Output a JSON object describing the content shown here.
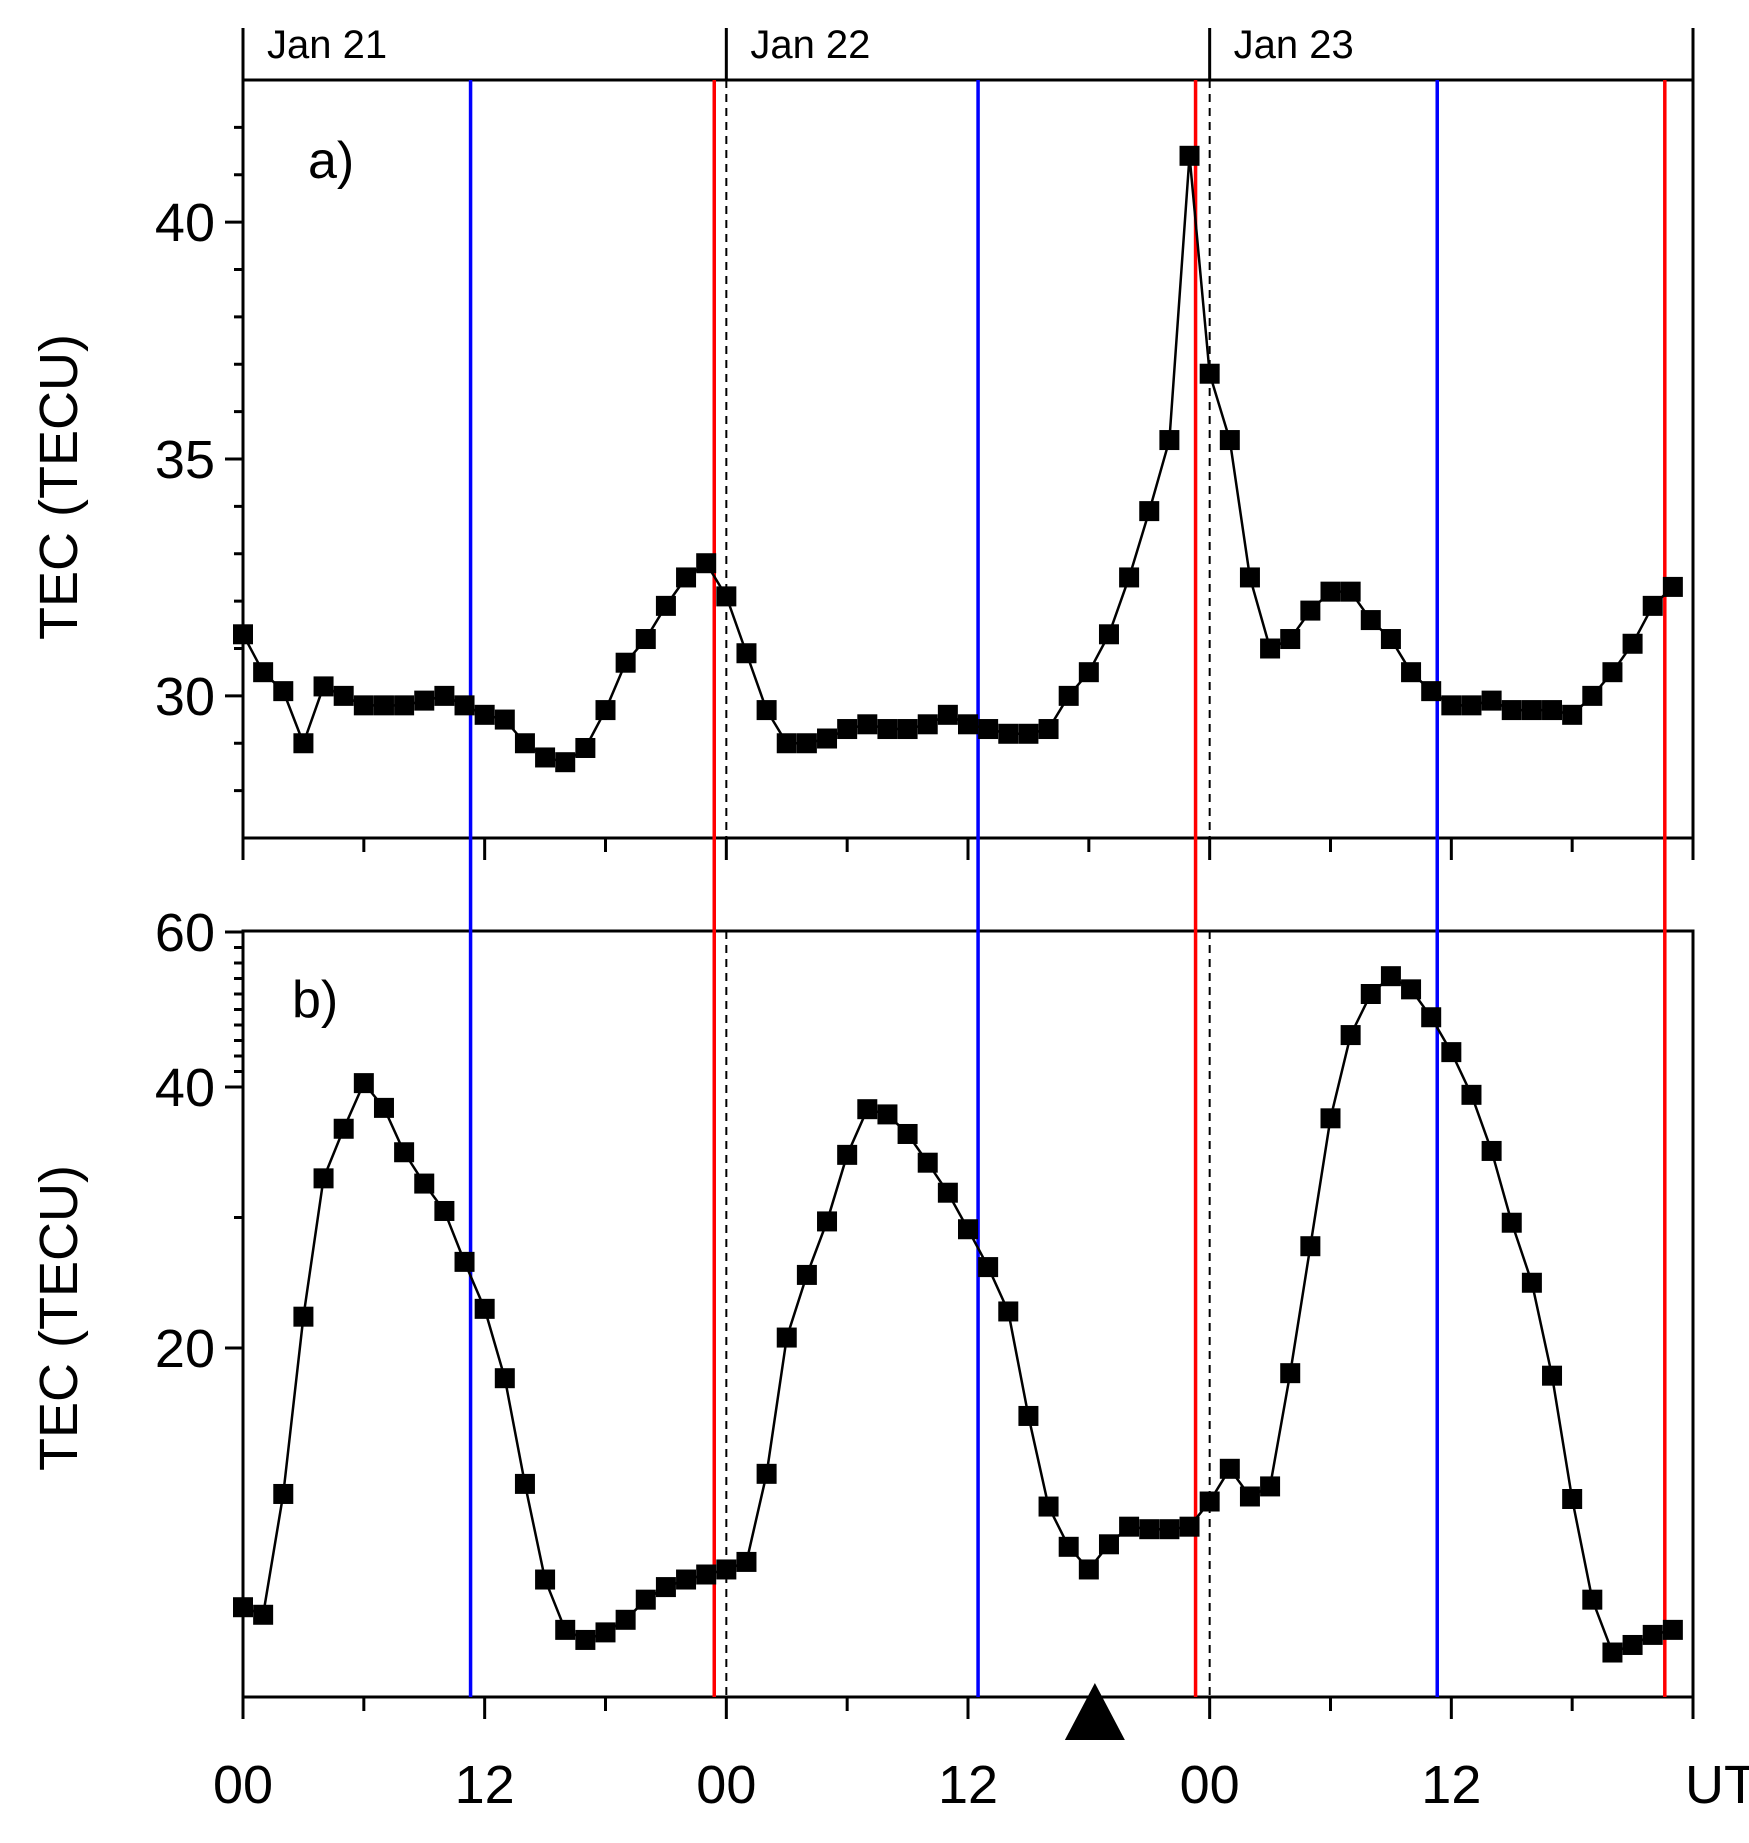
{
  "chart_data": [
    {
      "panel": "a",
      "type": "line",
      "panel_label": "a)",
      "ylabel": "TEC (TECU)",
      "xlim": [
        0,
        72
      ],
      "ylim": [
        27,
        43
      ],
      "y_ticks": [
        30,
        35,
        40
      ],
      "y_tick_labels": [
        "30",
        "35",
        "40"
      ],
      "x": [
        0,
        1,
        2,
        3,
        4,
        5,
        6,
        7,
        8,
        9,
        10,
        11,
        12,
        13,
        14,
        15,
        16,
        17,
        18,
        19,
        20,
        21,
        22,
        23,
        24,
        25,
        26,
        27,
        28,
        29,
        30,
        31,
        32,
        33,
        34,
        35,
        36,
        37,
        38,
        39,
        40,
        41,
        42,
        43,
        44,
        45,
        46,
        47,
        48,
        49,
        50,
        51,
        52,
        53,
        54,
        55,
        56,
        57,
        58,
        59,
        60,
        61,
        62,
        63,
        64,
        65,
        66,
        67,
        68,
        69,
        70,
        71
      ],
      "values": [
        31.3,
        30.5,
        30.1,
        29.0,
        30.2,
        30.0,
        29.8,
        29.8,
        29.8,
        29.9,
        30.0,
        29.8,
        29.6,
        29.5,
        29.0,
        28.7,
        28.6,
        28.9,
        29.7,
        30.7,
        31.2,
        31.9,
        32.5,
        32.8,
        32.1,
        30.9,
        29.7,
        29.0,
        29.0,
        29.1,
        29.3,
        29.4,
        29.3,
        29.3,
        29.4,
        29.6,
        29.4,
        29.3,
        29.2,
        29.2,
        29.3,
        30.0,
        30.5,
        31.3,
        32.5,
        33.9,
        35.4,
        41.4,
        36.8,
        35.4,
        32.5,
        31.0,
        31.2,
        31.8,
        32.2,
        32.2,
        31.6,
        31.2,
        30.5,
        30.1,
        29.8,
        29.8,
        29.9,
        29.7,
        29.7,
        29.7,
        29.6,
        30.0,
        30.5,
        31.1,
        31.9,
        32.3
      ],
      "marker": "filled-square",
      "color": "#000000"
    },
    {
      "panel": "b",
      "type": "line",
      "panel_label": "b)",
      "ylabel": "TEC (TECU)",
      "xlim": [
        0,
        72
      ],
      "y_ticks": [
        20,
        40,
        60
      ],
      "y_tick_labels": [
        "20",
        "40",
        "60"
      ],
      "x": [
        0,
        1,
        2,
        3,
        4,
        5,
        6,
        7,
        8,
        9,
        10,
        11,
        12,
        13,
        14,
        15,
        16,
        17,
        18,
        19,
        20,
        21,
        22,
        23,
        24,
        25,
        26,
        27,
        28,
        29,
        30,
        31,
        32,
        33,
        34,
        35,
        36,
        37,
        38,
        39,
        40,
        41,
        42,
        43,
        44,
        45,
        46,
        47,
        48,
        49,
        50,
        51,
        52,
        53,
        54,
        55,
        56,
        57,
        58,
        59,
        60,
        61,
        62,
        63,
        64,
        65,
        66,
        67,
        68,
        69,
        70,
        71
      ],
      "values": [
        9.7,
        9.4,
        14.2,
        22.4,
        33.0,
        36.8,
        40.5,
        38.4,
        35.0,
        32.6,
        30.5,
        26.6,
        23.0,
        18.8,
        14.6,
        10.8,
        8.8,
        8.4,
        8.7,
        9.2,
        10.0,
        10.5,
        10.8,
        11.0,
        11.2,
        11.5,
        15.0,
        20.8,
        25.6,
        29.7,
        34.8,
        38.3,
        37.9,
        36.4,
        34.2,
        31.9,
        29.1,
        26.2,
        22.8,
        17.3,
        13.7,
        12.1,
        11.2,
        12.2,
        12.9,
        12.8,
        12.8,
        12.9,
        13.9,
        15.2,
        14.1,
        14.5,
        19.0,
        27.8,
        37.6,
        46.7,
        52.0,
        54.3,
        52.6,
        49.0,
        44.5,
        39.4,
        35.1,
        29.6,
        25.0,
        18.9,
        14.0,
        10.0,
        7.9,
        8.2,
        8.6,
        8.8
      ],
      "marker": "filled-square",
      "color": "#000000"
    }
  ],
  "x_axis": {
    "tick_labels": [
      "00",
      "12",
      "00",
      "12",
      "00",
      "12",
      "UT"
    ],
    "tick_hours": [
      0,
      12,
      24,
      36,
      48,
      60,
      72
    ]
  },
  "days": [
    {
      "label": "Jan 21",
      "start_hour": 0
    },
    {
      "label": "Jan 22",
      "start_hour": 24
    },
    {
      "label": "Jan 23",
      "start_hour": 48
    }
  ],
  "vertical_lines": {
    "blue_hours": [
      11.3,
      36.5,
      59.3
    ],
    "red_hours": [
      23.4,
      47.3,
      70.6
    ],
    "dashed_hours": [
      24,
      48
    ],
    "blue_color": "#0000ff",
    "red_color": "#ff0000",
    "dashed_color": "#000000"
  },
  "event_marker": {
    "hour": 42.3,
    "shape": "triangle-up",
    "color": "#000000"
  }
}
